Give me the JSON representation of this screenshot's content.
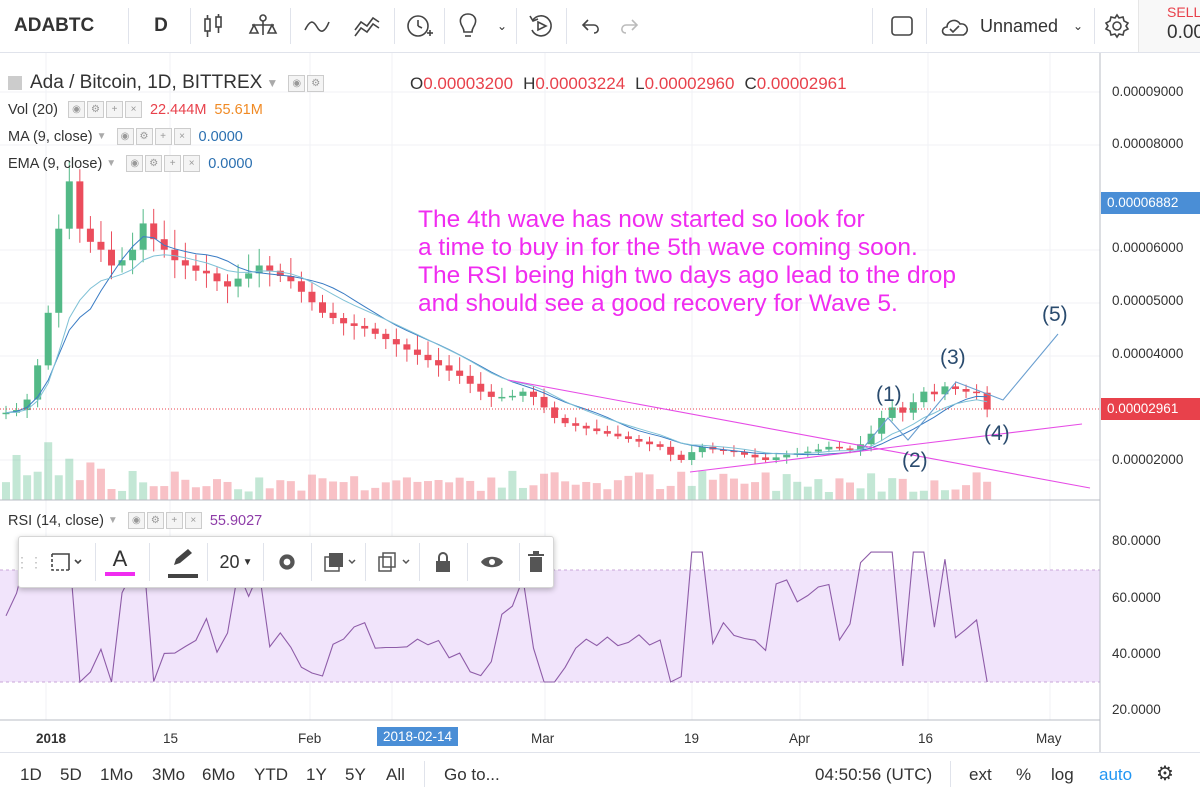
{
  "toolbar": {
    "symbol": "ADABTC",
    "interval": "D",
    "layout_name": "Unnamed",
    "sell_label": "SELL",
    "sell_price": "0.00"
  },
  "legend": {
    "main_title": "Ada / Bitcoin, 1D, BITTREX",
    "ohlc": {
      "o_key": "O",
      "o": "0.00003200",
      "h_key": "H",
      "h": "0.00003224",
      "l_key": "L",
      "l": "0.00002960",
      "c_key": "C",
      "c": "0.00002961"
    },
    "vol_name": "Vol (20)",
    "vol_val1": "22.444M",
    "vol_val2": "55.61M",
    "ma_name": "MA (9, close)",
    "ma_val": "0.0000",
    "ema_name": "EMA (9, close)",
    "ema_val": "0.0000",
    "rsi_name": "RSI (14, close)",
    "rsi_val": "55.9027"
  },
  "annotation": "The 4th wave has now started so look for\na time to buy in for the 5th wave coming soon.\nThe RSI being high two days ago lead to the drop\nand should see a good recovery for Wave 5.",
  "waves": {
    "w1": "(1)",
    "w2": "(2)",
    "w3": "(3)",
    "w4": "(4)",
    "w5": "(5)"
  },
  "drawing_toolbar": {
    "font_size": "20"
  },
  "bottom_bar": {
    "ranges": [
      "1D",
      "5D",
      "1Mo",
      "3Mo",
      "6Mo",
      "YTD",
      "1Y",
      "5Y",
      "All"
    ],
    "goto": "Go to...",
    "time": "04:50:56 (UTC)",
    "ext": "ext",
    "percent": "%",
    "log": "log",
    "auto": "auto"
  },
  "colors": {
    "up": "#53b987",
    "down": "#eb4d5c",
    "annotation": "#f02cf0",
    "ma": "#3a7cc4",
    "ema": "#7fc1d6",
    "rsi": "#8e5ca8",
    "rsi_band": "#f1e4fb",
    "auto": "#2196f3",
    "price_tag_current": "#e8414b",
    "price_tag_marker": "#4a8ed6"
  },
  "chart_data": {
    "type": "candlestick",
    "symbol": "Ada / Bitcoin",
    "timeframe": "1D",
    "exchange": "BITTREX",
    "x_ticks": [
      "2018",
      "15",
      "Feb",
      "2018-02-14",
      "Mar",
      "19",
      "Apr",
      "16",
      "May"
    ],
    "y_ticks": [
      "0.00009000",
      "0.00008000",
      "0.00006000",
      "0.00005000",
      "0.00004000",
      "0.00002000"
    ],
    "current_price": "0.00002961",
    "marker_price": "0.00006882",
    "approx_close_series": [
      2.9e-05,
      2.95e-05,
      3.15e-05,
      3.8e-05,
      4.8e-05,
      6.4e-05,
      7.3e-05,
      6.4e-05,
      6.15e-05,
      6e-05,
      5.7e-05,
      5.8e-05,
      6e-05,
      6.5e-05,
      6.2e-05,
      6e-05,
      5.8e-05,
      5.7e-05,
      5.6e-05,
      5.55e-05,
      5.4e-05,
      5.3e-05,
      5.45e-05,
      5.55e-05,
      5.7e-05,
      5.6e-05,
      5.5e-05,
      5.4e-05,
      5.2e-05,
      5e-05,
      4.8e-05,
      4.7e-05,
      4.6e-05,
      4.55e-05,
      4.5e-05,
      4.4e-05,
      4.3e-05,
      4.2e-05,
      4.1e-05,
      4e-05,
      3.9e-05,
      3.8e-05,
      3.7e-05,
      3.6e-05,
      3.45e-05,
      3.3e-05,
      3.2e-05,
      3.2e-05,
      3.22e-05,
      3.3e-05,
      3.2e-05,
      3e-05,
      2.8e-05,
      2.7e-05,
      2.65e-05,
      2.6e-05,
      2.55e-05,
      2.5e-05,
      2.45e-05,
      2.4e-05,
      2.35e-05,
      2.3e-05,
      2.25e-05,
      2.1e-05,
      2e-05,
      2.15e-05,
      2.25e-05,
      2.2e-05,
      2.18e-05,
      2.15e-05,
      2.1e-05,
      2.05e-05,
      2e-05,
      2.05e-05,
      2.1e-05,
      2.13e-05,
      2.16e-05,
      2.2e-05,
      2.25e-05,
      2.22e-05,
      2.2e-05,
      2.3e-05,
      2.5e-05,
      2.8e-05,
      3e-05,
      2.9e-05,
      3.1e-05,
      3.3e-05,
      3.25e-05,
      3.4e-05,
      3.35e-05,
      3.3e-05,
      3.28e-05,
      2.96e-05
    ],
    "moving_averages": [
      "MA (9, close)",
      "EMA (9, close)"
    ],
    "rsi": {
      "name": "RSI (14, close)",
      "value": 55.9027,
      "ticks": [
        "80.0000",
        "60.0000",
        "40.0000",
        "20.0000"
      ],
      "band": [
        30,
        70
      ]
    },
    "annotations": [
      "(1)",
      "(2)",
      "(3)",
      "(4)",
      "(5)"
    ]
  }
}
